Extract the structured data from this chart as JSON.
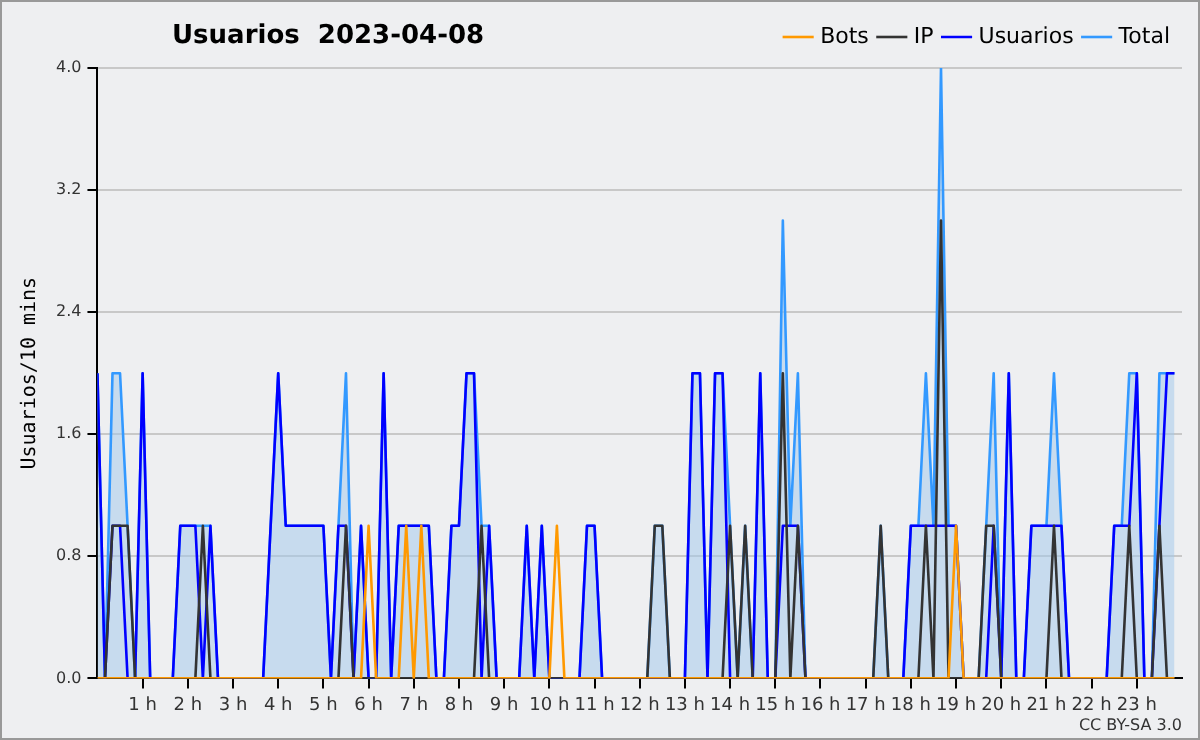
{
  "chart_data": {
    "type": "line",
    "title": "Usuarios  2023-04-08",
    "ylabel": "Usuarios/10 mins",
    "annotations": [
      "CC BY-SA 3.0"
    ],
    "x": [
      0,
      0.167,
      0.333,
      0.5,
      0.667,
      0.833,
      1,
      1.167,
      1.333,
      1.5,
      1.667,
      1.833,
      2,
      2.167,
      2.333,
      2.5,
      2.667,
      2.833,
      3,
      3.167,
      3.333,
      3.5,
      3.667,
      3.833,
      4,
      4.167,
      4.333,
      4.5,
      4.667,
      4.833,
      5,
      5.167,
      5.333,
      5.5,
      5.667,
      5.833,
      6,
      6.167,
      6.333,
      6.5,
      6.667,
      6.833,
      7,
      7.167,
      7.333,
      7.5,
      7.667,
      7.833,
      8,
      8.167,
      8.333,
      8.5,
      8.667,
      8.833,
      9,
      9.167,
      9.333,
      9.5,
      9.667,
      9.833,
      10,
      10.167,
      10.333,
      10.5,
      10.667,
      10.833,
      11,
      11.167,
      11.333,
      11.5,
      11.667,
      11.833,
      12,
      12.167,
      12.333,
      12.5,
      12.667,
      12.833,
      13,
      13.167,
      13.333,
      13.5,
      13.667,
      13.833,
      14,
      14.167,
      14.333,
      14.5,
      14.667,
      14.833,
      15,
      15.167,
      15.333,
      15.5,
      15.667,
      15.833,
      16,
      16.167,
      16.333,
      16.5,
      16.667,
      16.833,
      17,
      17.167,
      17.333,
      17.5,
      17.667,
      17.833,
      18,
      18.167,
      18.333,
      18.5,
      18.667,
      18.833,
      19,
      19.167,
      19.333,
      19.5,
      19.667,
      19.833,
      20,
      20.167,
      20.333,
      20.5,
      20.667,
      20.833,
      21,
      21.167,
      21.333,
      21.5,
      21.667,
      21.833,
      22,
      22.167,
      22.333,
      22.5,
      22.667,
      22.833,
      23,
      23.167,
      23.333,
      23.5,
      23.667,
      23.833
    ],
    "series": [
      {
        "name": "Total",
        "type": "area",
        "color": "#3399ff",
        "values": [
          2,
          0,
          2,
          2,
          1,
          0,
          2,
          0,
          0,
          0,
          0,
          1,
          1,
          1,
          1,
          1,
          0,
          0,
          0,
          0,
          0,
          0,
          0,
          1,
          2,
          1,
          1,
          1,
          1,
          1,
          1,
          0,
          1,
          2,
          0,
          1,
          0,
          0,
          2,
          0,
          1,
          1,
          1,
          1,
          1,
          0,
          0,
          1,
          1,
          2,
          2,
          1,
          1,
          0,
          0,
          0,
          0,
          1,
          0,
          1,
          0,
          0,
          0,
          0,
          0,
          1,
          1,
          0,
          0,
          0,
          0,
          0,
          0,
          0,
          1,
          1,
          0,
          0,
          0,
          2,
          2,
          0,
          2,
          2,
          1,
          0,
          1,
          0,
          2,
          0,
          0,
          3,
          1,
          2,
          0,
          0,
          0,
          0,
          0,
          0,
          0,
          0,
          0,
          0,
          1,
          0,
          0,
          0,
          1,
          1,
          2,
          1,
          4,
          1,
          1,
          0,
          0,
          0,
          1,
          2,
          0,
          2,
          0,
          0,
          1,
          1,
          1,
          2,
          1,
          0,
          0,
          0,
          0,
          0,
          0,
          1,
          1,
          2,
          2,
          0,
          0,
          2,
          2,
          2
        ]
      },
      {
        "name": "Usuarios",
        "type": "line",
        "color": "#0000ff",
        "values": [
          2,
          0,
          1,
          1,
          0,
          0,
          2,
          0,
          0,
          0,
          0,
          1,
          1,
          1,
          0,
          1,
          0,
          0,
          0,
          0,
          0,
          0,
          0,
          1,
          2,
          1,
          1,
          1,
          1,
          1,
          1,
          0,
          1,
          1,
          0,
          1,
          0,
          0,
          2,
          0,
          1,
          1,
          1,
          1,
          1,
          0,
          0,
          1,
          1,
          2,
          2,
          0,
          1,
          0,
          0,
          0,
          0,
          1,
          0,
          1,
          0,
          0,
          0,
          0,
          0,
          1,
          1,
          0,
          0,
          0,
          0,
          0,
          0,
          0,
          0,
          0,
          0,
          0,
          0,
          2,
          2,
          0,
          2,
          2,
          0,
          0,
          0,
          0,
          2,
          0,
          0,
          1,
          1,
          1,
          0,
          0,
          0,
          0,
          0,
          0,
          0,
          0,
          0,
          0,
          0,
          0,
          0,
          0,
          1,
          1,
          1,
          1,
          1,
          1,
          1,
          0,
          0,
          0,
          0,
          1,
          0,
          2,
          0,
          0,
          1,
          1,
          1,
          1,
          1,
          0,
          0,
          0,
          0,
          0,
          0,
          1,
          1,
          1,
          2,
          0,
          0,
          1,
          2,
          2
        ]
      },
      {
        "name": "IP",
        "type": "line",
        "color": "#333333",
        "values": [
          0,
          0,
          1,
          1,
          1,
          0,
          0,
          0,
          0,
          0,
          0,
          0,
          0,
          0,
          1,
          0,
          0,
          0,
          0,
          0,
          0,
          0,
          0,
          0,
          0,
          0,
          0,
          0,
          0,
          0,
          0,
          0,
          0,
          1,
          0,
          0,
          0,
          0,
          0,
          0,
          0,
          0,
          0,
          0,
          0,
          0,
          0,
          0,
          0,
          0,
          0,
          1,
          0,
          0,
          0,
          0,
          0,
          0,
          0,
          0,
          0,
          0,
          0,
          0,
          0,
          0,
          0,
          0,
          0,
          0,
          0,
          0,
          0,
          0,
          1,
          1,
          0,
          0,
          0,
          0,
          0,
          0,
          0,
          0,
          1,
          0,
          1,
          0,
          0,
          0,
          0,
          2,
          0,
          1,
          0,
          0,
          0,
          0,
          0,
          0,
          0,
          0,
          0,
          0,
          1,
          0,
          0,
          0,
          0,
          0,
          1,
          0,
          3,
          0,
          0,
          0,
          0,
          0,
          1,
          1,
          0,
          0,
          0,
          0,
          0,
          0,
          0,
          1,
          0,
          0,
          0,
          0,
          0,
          0,
          0,
          0,
          0,
          1,
          0,
          0,
          0,
          1,
          0,
          0
        ]
      },
      {
        "name": "Bots",
        "type": "line",
        "color": "#ff9900",
        "values": [
          0,
          0,
          0,
          0,
          0,
          0,
          0,
          0,
          0,
          0,
          0,
          0,
          0,
          0,
          0,
          0,
          0,
          0,
          0,
          0,
          0,
          0,
          0,
          0,
          0,
          0,
          0,
          0,
          0,
          0,
          0,
          0,
          0,
          0,
          0,
          0,
          1,
          0,
          0,
          0,
          0,
          1,
          0,
          1,
          0,
          0,
          0,
          0,
          0,
          0,
          0,
          0,
          0,
          0,
          0,
          0,
          0,
          0,
          0,
          0,
          0,
          1,
          0,
          0,
          0,
          0,
          0,
          0,
          0,
          0,
          0,
          0,
          0,
          0,
          0,
          0,
          0,
          0,
          0,
          0,
          0,
          0,
          0,
          0,
          0,
          0,
          0,
          0,
          0,
          0,
          0,
          0,
          0,
          0,
          0,
          0,
          0,
          0,
          0,
          0,
          0,
          0,
          0,
          0,
          0,
          0,
          0,
          0,
          0,
          0,
          0,
          0,
          0,
          0,
          1,
          0,
          0,
          0,
          0,
          0,
          0,
          0,
          0,
          0,
          0,
          0,
          0,
          0,
          0,
          0,
          0,
          0,
          0,
          0,
          0,
          0,
          0,
          0,
          0,
          0,
          0,
          0,
          0,
          0
        ]
      }
    ],
    "xlim": [
      0,
      24
    ],
    "xticks": [
      {
        "value": 1,
        "label": "1 h"
      },
      {
        "value": 2,
        "label": "2 h"
      },
      {
        "value": 3,
        "label": "3 h"
      },
      {
        "value": 4,
        "label": "4 h"
      },
      {
        "value": 5,
        "label": "5 h"
      },
      {
        "value": 6,
        "label": "6 h"
      },
      {
        "value": 7,
        "label": "7 h"
      },
      {
        "value": 8,
        "label": "8 h"
      },
      {
        "value": 9,
        "label": "9 h"
      },
      {
        "value": 10,
        "label": "10 h"
      },
      {
        "value": 11,
        "label": "11 h"
      },
      {
        "value": 12,
        "label": "12 h"
      },
      {
        "value": 13,
        "label": "13 h"
      },
      {
        "value": 14,
        "label": "14 h"
      },
      {
        "value": 15,
        "label": "15 h"
      },
      {
        "value": 16,
        "label": "16 h"
      },
      {
        "value": 17,
        "label": "17 h"
      },
      {
        "value": 18,
        "label": "18 h"
      },
      {
        "value": 19,
        "label": "19 h"
      },
      {
        "value": 20,
        "label": "20 h"
      },
      {
        "value": 21,
        "label": "21 h"
      },
      {
        "value": 22,
        "label": "22 h"
      },
      {
        "value": 23,
        "label": "23 h"
      }
    ],
    "ylim": [
      0,
      4
    ],
    "yticks": [
      {
        "value": 0,
        "label": "0.0"
      },
      {
        "value": 0.8,
        "label": "0.8"
      },
      {
        "value": 1.6,
        "label": "1.6"
      },
      {
        "value": 2.4,
        "label": "2.4"
      },
      {
        "value": 3.2,
        "label": "3.2"
      },
      {
        "value": 4,
        "label": "4.0"
      }
    ],
    "grid": "y",
    "legend": "top right",
    "marker": "none"
  }
}
